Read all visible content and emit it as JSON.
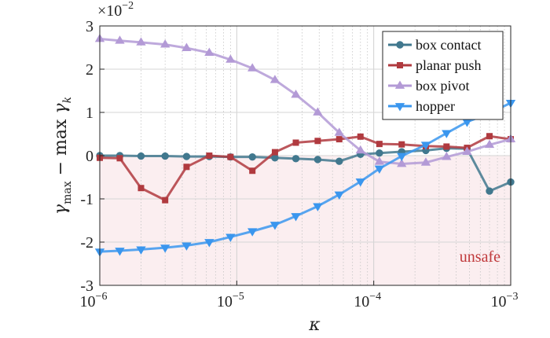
{
  "chart_data": {
    "type": "line",
    "xscale": "log",
    "xlim": [
      1e-06,
      0.001
    ],
    "ylim": [
      -0.03,
      0.03
    ],
    "y_multiplier_label": "×10",
    "y_multiplier_exponent": "−2",
    "xlabel": "κ",
    "ylabel_main": "γ",
    "ylabel_sub1": "max",
    "ylabel_mid": " − max ",
    "ylabel_gamma2": "γ",
    "ylabel_sub2": "k",
    "x_ticks": [
      {
        "value": 1e-06,
        "base": "10",
        "exp": "−6"
      },
      {
        "value": 1e-05,
        "base": "10",
        "exp": "−5"
      },
      {
        "value": 0.0001,
        "base": "10",
        "exp": "−4"
      },
      {
        "value": 0.001,
        "base": "10",
        "exp": "−3"
      }
    ],
    "y_ticks": [
      {
        "value": 0.03,
        "label": "3"
      },
      {
        "value": 0.02,
        "label": "2"
      },
      {
        "value": 0.01,
        "label": "1"
      },
      {
        "value": 0,
        "label": "0"
      },
      {
        "value": -0.01,
        "label": "-1"
      },
      {
        "value": -0.02,
        "label": "-2"
      },
      {
        "value": -0.03,
        "label": "-3"
      }
    ],
    "grid": true,
    "legend_position": "top-right",
    "unsafe_region": {
      "label": "unsafe",
      "color": "#c0393b",
      "fill": "#fbeef0"
    },
    "x": [
      1e-06,
      1.4e-06,
      2e-06,
      3e-06,
      4.3e-06,
      6.3e-06,
      9e-06,
      1.3e-05,
      1.9e-05,
      2.7e-05,
      3.9e-05,
      5.6e-05,
      8e-05,
      0.00011,
      0.00016,
      0.00024,
      0.00034,
      0.00048,
      0.0007,
      0.001
    ],
    "series": [
      {
        "name": "box contact",
        "color": "#41788e",
        "marker": "circle",
        "values": [
          0,
          0,
          -0.0001,
          -0.0001,
          -0.0002,
          -0.0002,
          -0.0003,
          -0.0003,
          -0.0005,
          -0.0007,
          -0.0009,
          -0.0013,
          0.0003,
          0.0006,
          0.0009,
          0.0012,
          0.0017,
          0.0016,
          -0.0082,
          -0.0061
        ]
      },
      {
        "name": "planar push",
        "color": "#b03a3f",
        "marker": "square",
        "values": [
          -0.0005,
          -0.0006,
          -0.0075,
          -0.0103,
          -0.0026,
          0,
          -0.0003,
          -0.0035,
          0.0008,
          0.003,
          0.0034,
          0.0038,
          0.0044,
          0.0027,
          0.0026,
          0.0022,
          0.0021,
          0.0018,
          0.0045,
          0.0038
        ]
      },
      {
        "name": "box pivot",
        "color": "#b39ad6",
        "marker": "triangle-up",
        "values": [
          0.027,
          0.0266,
          0.0262,
          0.0257,
          0.0249,
          0.0238,
          0.0222,
          0.0202,
          0.0175,
          0.0141,
          0.01,
          0.0053,
          0.0012,
          -0.0014,
          -0.0019,
          -0.0016,
          -0.0003,
          0.0009,
          0.0025,
          0.0038
        ]
      },
      {
        "name": "hopper",
        "color": "#3a96ee",
        "marker": "triangle-down",
        "values": [
          -0.0222,
          -0.022,
          -0.0217,
          -0.0213,
          -0.0208,
          -0.02,
          -0.0188,
          -0.0175,
          -0.016,
          -0.014,
          -0.0117,
          -0.009,
          -0.006,
          -0.003,
          -0.0001,
          0.0025,
          0.0052,
          0.0078,
          0.0098,
          0.0122
        ]
      }
    ]
  }
}
